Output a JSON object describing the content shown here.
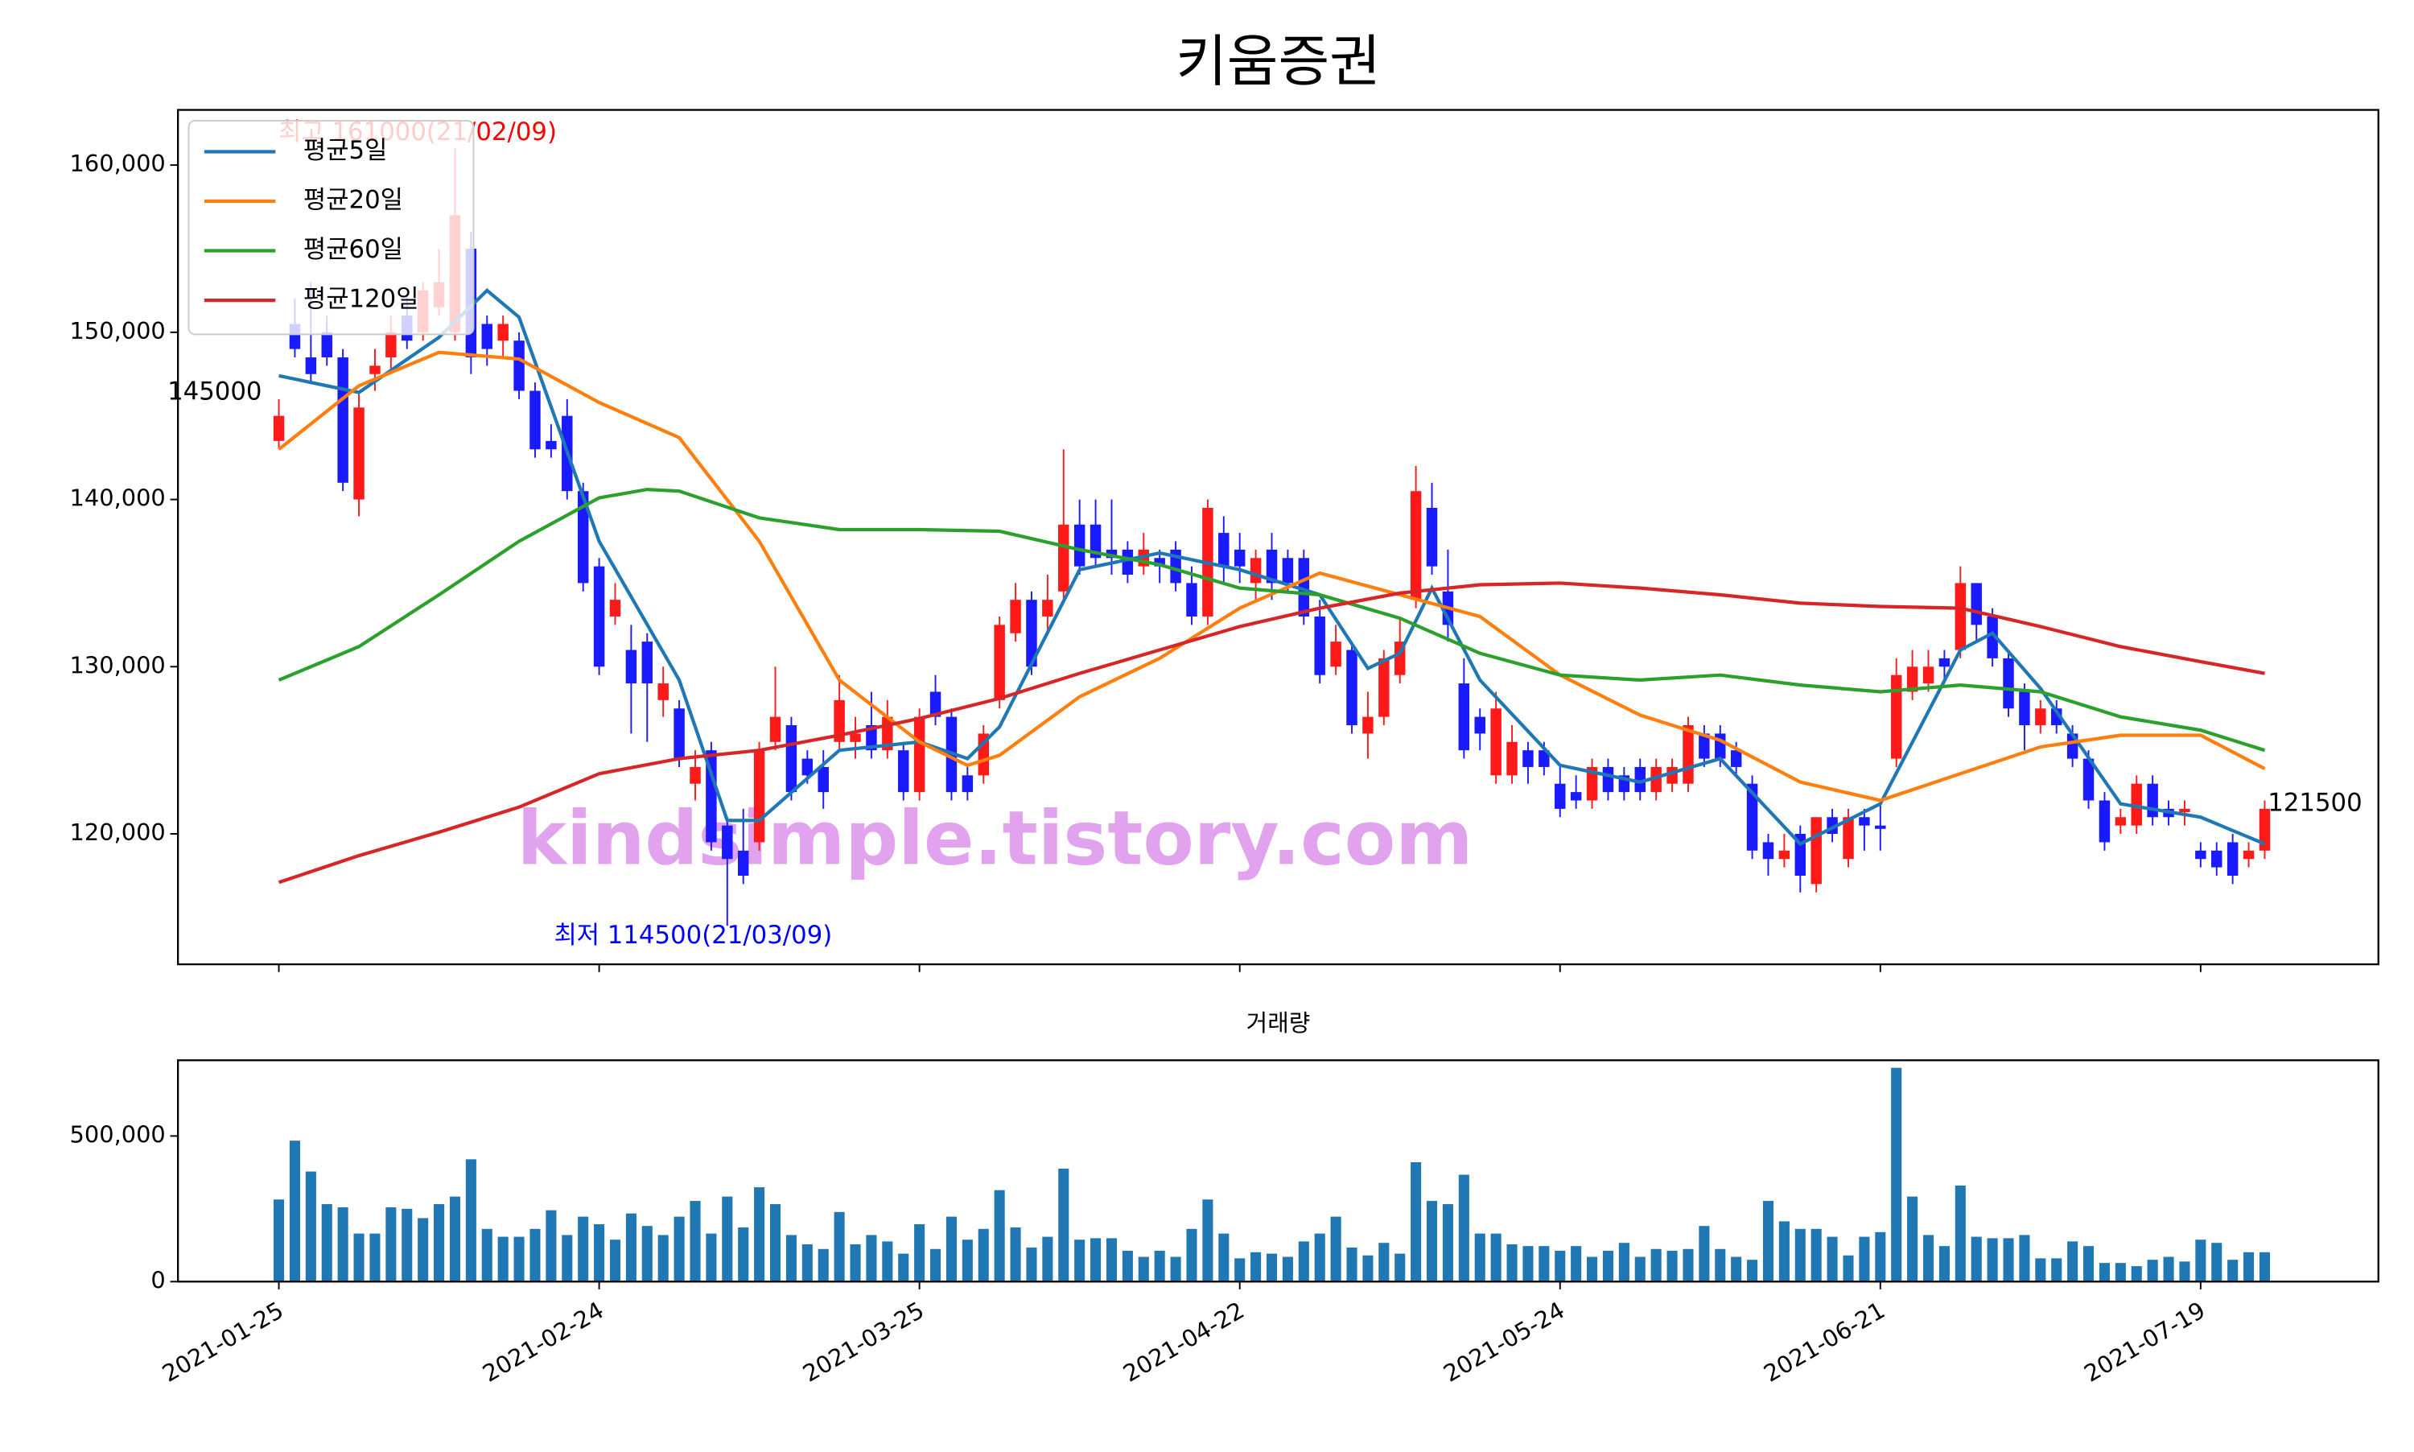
{
  "chart_data": [
    {
      "type": "candlestick",
      "title": "키움증권",
      "watermark": "kindsimple.tistory.com",
      "up_color": "#ff1a1a",
      "down_color": "#1a1aff",
      "xlim": [
        -6.3,
        131.1
      ],
      "ylim": [
        112200,
        163300
      ],
      "yticks": [
        {
          "value": 120000,
          "label": "120,000"
        },
        {
          "value": 130000,
          "label": "130,000"
        },
        {
          "value": 140000,
          "label": "140,000"
        },
        {
          "value": 150000,
          "label": "150,000"
        },
        {
          "value": 160000,
          "label": "160,000"
        }
      ],
      "open": [
        143500,
        150500,
        148500,
        150000,
        148500,
        140000,
        147500,
        148500,
        151000,
        150000,
        151500,
        150000,
        155000,
        150500,
        149500,
        149500,
        146500,
        143500,
        145000,
        140500,
        136000,
        133000,
        131000,
        131500,
        128000,
        127500,
        123000,
        125000,
        120500,
        119000,
        119500,
        125500,
        126500,
        124500,
        124000,
        125500,
        125500,
        126500,
        125000,
        125000,
        122500,
        128500,
        127000,
        123500,
        123500,
        128000,
        132000,
        134000,
        133000,
        134500,
        138500,
        138500,
        137000,
        137000,
        136000,
        136500,
        137000,
        135000,
        133000,
        138000,
        137000,
        135000,
        137000,
        136500,
        136500,
        133000,
        130000,
        131000,
        126000,
        127000,
        129500,
        134000,
        139500,
        134500,
        129000,
        127000,
        123500,
        123500,
        125000,
        125000,
        123000,
        122500,
        122000,
        124000,
        123500,
        124000,
        122500,
        123000,
        123000,
        126000,
        126000,
        125000,
        123000,
        119500,
        118500,
        120000,
        117000,
        121000,
        118500,
        121000,
        120500,
        124500,
        128500,
        129000,
        130500,
        131000,
        135000,
        133000,
        130500,
        128500,
        126500,
        127500,
        126000,
        124500,
        122000,
        120500,
        120500,
        123000,
        121500,
        121300,
        119000,
        119000,
        119500,
        118500,
        119000
      ],
      "high": [
        146000,
        152000,
        153000,
        151000,
        149000,
        146500,
        149000,
        151000,
        152500,
        153000,
        155000,
        161000,
        156000,
        151000,
        151000,
        150000,
        147000,
        144500,
        146000,
        141000,
        136500,
        135000,
        132500,
        132000,
        130000,
        128000,
        125000,
        125500,
        121000,
        121500,
        125500,
        130000,
        127000,
        125000,
        125000,
        129500,
        127000,
        128500,
        128000,
        125500,
        127500,
        129500,
        127500,
        124000,
        126500,
        133000,
        135000,
        134500,
        135500,
        143000,
        140000,
        140000,
        140000,
        137500,
        138000,
        137000,
        137500,
        136000,
        140000,
        139000,
        138000,
        137000,
        138000,
        137000,
        137000,
        134000,
        132500,
        131500,
        128500,
        131000,
        133000,
        142000,
        141000,
        137000,
        130500,
        127500,
        128500,
        126500,
        125500,
        125500,
        124000,
        123500,
        124500,
        124500,
        124000,
        124500,
        124500,
        124500,
        127000,
        126500,
        126500,
        125500,
        123500,
        120000,
        120000,
        120500,
        121000,
        121500,
        121500,
        121500,
        122000,
        130500,
        131000,
        131000,
        131000,
        136000,
        135000,
        133500,
        131000,
        129000,
        128000,
        128000,
        126500,
        125000,
        122500,
        121500,
        123500,
        123500,
        122000,
        122000,
        119500,
        119500,
        120000,
        119500,
        122000
      ],
      "low": [
        143000,
        148500,
        147000,
        148000,
        140500,
        139000,
        146500,
        147500,
        149000,
        149500,
        151000,
        149500,
        147500,
        148000,
        148500,
        146000,
        142500,
        142500,
        140000,
        134500,
        129500,
        132500,
        126000,
        125500,
        127000,
        124000,
        122000,
        119000,
        114500,
        117000,
        119000,
        125000,
        122000,
        123000,
        121500,
        125000,
        124500,
        124500,
        124500,
        122000,
        122000,
        126500,
        122000,
        122000,
        123000,
        127500,
        131500,
        129500,
        132000,
        134000,
        135500,
        136000,
        135500,
        135000,
        135500,
        135000,
        134500,
        132500,
        132500,
        135000,
        135000,
        134000,
        134000,
        134500,
        132500,
        129000,
        129500,
        126000,
        124500,
        126500,
        129000,
        133500,
        135500,
        131500,
        124500,
        125000,
        123000,
        123000,
        123000,
        123500,
        121000,
        121500,
        121500,
        122000,
        122000,
        122000,
        122000,
        122500,
        122500,
        124000,
        124000,
        123500,
        118500,
        117500,
        118000,
        116500,
        116500,
        119500,
        118000,
        119000,
        119000,
        124000,
        128000,
        128500,
        129000,
        130500,
        131500,
        130000,
        127000,
        125000,
        126000,
        126000,
        124000,
        121500,
        119000,
        120000,
        120000,
        120500,
        120500,
        120500,
        118000,
        117500,
        117000,
        118000,
        118500
      ],
      "close": [
        145000,
        149000,
        147500,
        148500,
        141000,
        145500,
        148000,
        150000,
        149500,
        152500,
        153000,
        157000,
        148500,
        149000,
        150500,
        146500,
        143000,
        143000,
        140500,
        135000,
        130000,
        134000,
        129000,
        129000,
        129000,
        124500,
        124000,
        119500,
        118500,
        117500,
        125000,
        127000,
        122500,
        123500,
        122500,
        128000,
        126000,
        125000,
        127000,
        122500,
        127000,
        127000,
        122500,
        122500,
        126000,
        132500,
        134000,
        130000,
        134000,
        138500,
        136000,
        136500,
        136500,
        135500,
        137000,
        136000,
        135000,
        133000,
        139500,
        136000,
        136000,
        136500,
        135000,
        135000,
        133000,
        129500,
        131500,
        126500,
        127000,
        130500,
        131500,
        140500,
        136000,
        132500,
        125000,
        126000,
        127500,
        125500,
        124000,
        124000,
        121500,
        122000,
        124000,
        122500,
        122500,
        122500,
        124000,
        124000,
        126500,
        124500,
        124500,
        124000,
        119000,
        118500,
        119000,
        117500,
        121000,
        120000,
        121000,
        120500,
        120300,
        129500,
        130000,
        130000,
        130000,
        135000,
        132500,
        130500,
        127500,
        126500,
        127500,
        126500,
        124500,
        122000,
        119500,
        121000,
        123000,
        121000,
        121000,
        121500,
        118500,
        118000,
        117500,
        119000,
        121500
      ],
      "series": [
        {
          "name": "평균5일",
          "color": "#1f77b4",
          "x": [
            0,
            5,
            10,
            13,
            15,
            20,
            25,
            28,
            30,
            35,
            40,
            43,
            45,
            50,
            55,
            60,
            65,
            68,
            70,
            72,
            75,
            80,
            85,
            90,
            95,
            100,
            105,
            107,
            110,
            115,
            120,
            124
          ],
          "values": [
            147400,
            146400,
            149700,
            152500,
            150900,
            137500,
            129200,
            120800,
            120800,
            125000,
            125500,
            124500,
            126400,
            135800,
            136800,
            135800,
            134300,
            129900,
            130800,
            134700,
            129200,
            124100,
            123100,
            124500,
            119400,
            121800,
            131000,
            132000,
            128700,
            121800,
            121000,
            119400
          ]
        },
        {
          "name": "평균20일",
          "color": "#ff7f0e",
          "x": [
            0,
            5,
            10,
            15,
            20,
            25,
            30,
            35,
            40,
            43,
            45,
            50,
            55,
            60,
            65,
            70,
            75,
            80,
            85,
            90,
            95,
            100,
            105,
            110,
            115,
            120,
            124
          ],
          "values": [
            143000,
            146800,
            148800,
            148400,
            145800,
            143700,
            137500,
            129200,
            125500,
            124100,
            124700,
            128200,
            130500,
            133500,
            135600,
            134300,
            133000,
            129500,
            127100,
            125600,
            123100,
            122000,
            123600,
            125200,
            125900,
            125900,
            123900
          ]
        },
        {
          "name": "평균60일",
          "color": "#2ca02c",
          "x": [
            0,
            5,
            10,
            15,
            20,
            23,
            25,
            30,
            35,
            40,
            45,
            50,
            55,
            60,
            65,
            70,
            75,
            80,
            85,
            90,
            95,
            100,
            105,
            110,
            115,
            120,
            124
          ],
          "values": [
            129200,
            131200,
            134300,
            137500,
            140100,
            140600,
            140500,
            138900,
            138200,
            138200,
            138100,
            137000,
            136100,
            134700,
            134300,
            132900,
            130800,
            129500,
            129200,
            129500,
            128900,
            128500,
            128900,
            128500,
            127000,
            126200,
            125000
          ]
        },
        {
          "name": "평균120일",
          "color": "#d62728",
          "x": [
            0,
            5,
            10,
            15,
            20,
            25,
            30,
            35,
            40,
            45,
            50,
            55,
            60,
            65,
            70,
            75,
            80,
            85,
            90,
            95,
            100,
            105,
            110,
            115,
            120,
            124
          ],
          "values": [
            117100,
            118700,
            120100,
            121600,
            123600,
            124500,
            125000,
            125900,
            126900,
            128100,
            129600,
            131000,
            132400,
            133500,
            134400,
            134900,
            135000,
            134700,
            134300,
            133800,
            133600,
            133500,
            132400,
            131200,
            130300,
            129600
          ]
        }
      ],
      "legend": "upper left",
      "annotations": [
        {
          "text": "최고 161000(21/02/09)",
          "color": "#ff0000"
        },
        {
          "text": "최저 114500(21/03/09)",
          "color": "#0000ff"
        }
      ]
    },
    {
      "type": "bar",
      "title": "거래량",
      "color": "#1f77b4",
      "xlim": [
        -6.3,
        131.1
      ],
      "ylim": [
        0,
        760000
      ],
      "yticks": [
        0,
        {
          "value": 500000,
          "label": "500,000"
        }
      ],
      "xticks": [
        {
          "value": 0,
          "label": "2021-01-25"
        },
        {
          "value": 20,
          "label": "2021-02-24"
        },
        {
          "value": 40,
          "label": "2021-03-25"
        },
        {
          "value": 60,
          "label": "2021-04-22"
        },
        {
          "value": 80,
          "label": "2021-05-24"
        },
        {
          "value": 100,
          "label": "2021-06-21"
        },
        {
          "value": 120,
          "label": "2021-07-19"
        }
      ],
      "values": [
        282000,
        484000,
        378000,
        266000,
        255000,
        165000,
        165000,
        255000,
        250000,
        218000,
        266000,
        292000,
        420000,
        181000,
        154000,
        154000,
        181000,
        245000,
        160000,
        223000,
        197000,
        144000,
        234000,
        191000,
        160000,
        223000,
        277000,
        165000,
        292000,
        186000,
        324000,
        266000,
        160000,
        128000,
        112000,
        239000,
        128000,
        160000,
        138000,
        96000,
        197000,
        112000,
        223000,
        144000,
        181000,
        314000,
        186000,
        117000,
        154000,
        388000,
        144000,
        149000,
        149000,
        106000,
        85000,
        106000,
        85000,
        181000,
        282000,
        165000,
        80000,
        101000,
        96000,
        85000,
        138000,
        165000,
        223000,
        117000,
        90000,
        133000,
        96000,
        410000,
        277000,
        266000,
        367000,
        165000,
        165000,
        128000,
        122000,
        122000,
        106000,
        122000,
        85000,
        106000,
        133000,
        85000,
        112000,
        106000,
        112000,
        191000,
        112000,
        85000,
        75000,
        277000,
        207000,
        181000,
        181000,
        154000,
        90000,
        154000,
        170000,
        734000,
        292000,
        160000,
        122000,
        330000,
        154000,
        149000,
        149000,
        160000,
        80000,
        80000,
        138000,
        122000,
        64000,
        64000,
        53000,
        75000,
        85000,
        69000,
        144000,
        133000,
        75000,
        101000,
        101000
      ]
    }
  ]
}
